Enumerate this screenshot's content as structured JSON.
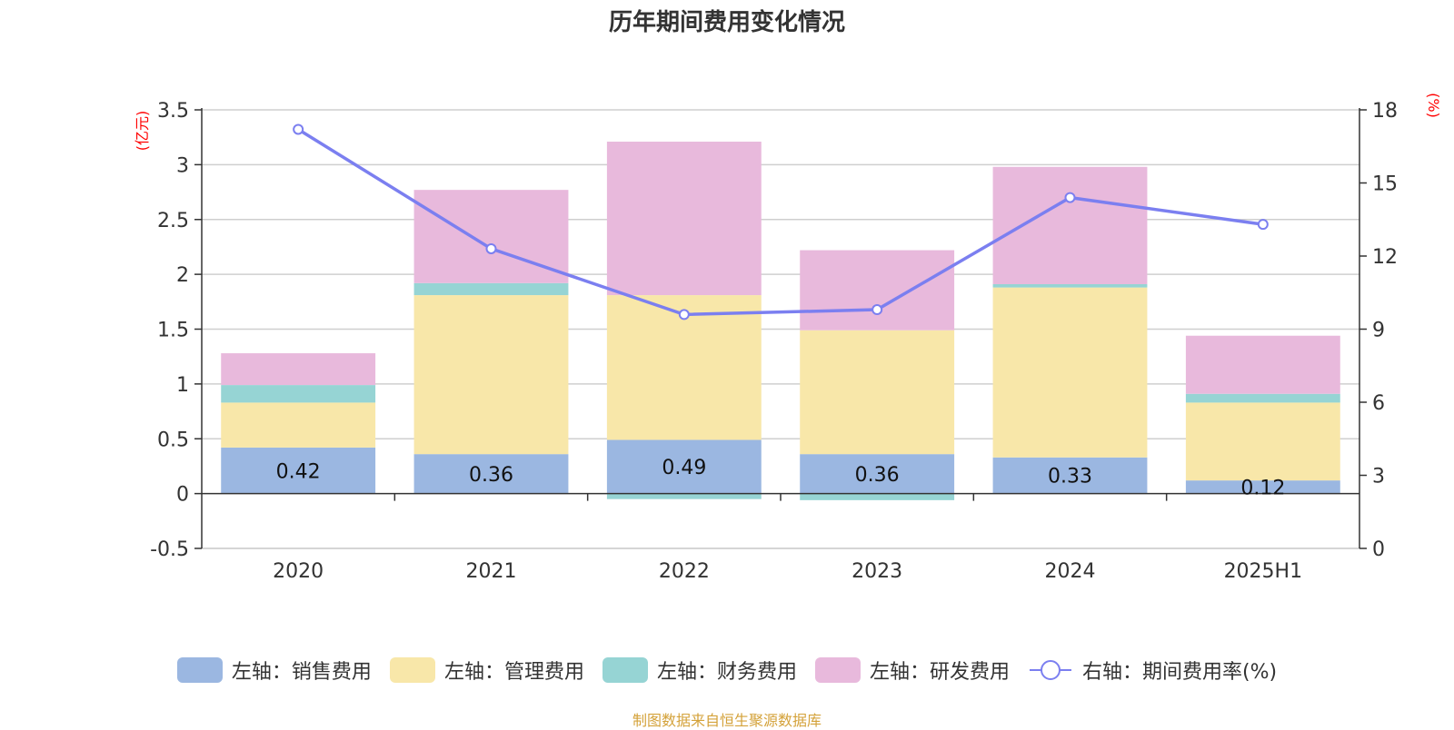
{
  "chart_data": {
    "type": "bar",
    "title": "历年期间费用变化情况",
    "categories": [
      "2020",
      "2021",
      "2022",
      "2023",
      "2024",
      "2025H1"
    ],
    "left_unit": "(亿元)",
    "right_unit": "(%)",
    "ylim": [
      -0.5,
      3.5
    ],
    "yticks": [
      "-0.5",
      "0",
      "0.5",
      "1",
      "1.5",
      "2",
      "2.5",
      "3",
      "3.5"
    ],
    "y2lim": [
      0,
      18
    ],
    "y2ticks": [
      "0",
      "3",
      "6",
      "9",
      "12",
      "15",
      "18"
    ],
    "grid": true,
    "legend_position": "bottom",
    "series": [
      {
        "name": "左轴：销售费用",
        "axis": "left",
        "kind": "bar",
        "color": "#9bb7e1",
        "values": [
          0.42,
          0.36,
          0.49,
          0.36,
          0.33,
          0.12
        ],
        "labels": [
          "0.42",
          "0.36",
          "0.49",
          "0.36",
          "0.33",
          "0.12"
        ]
      },
      {
        "name": "左轴：管理费用",
        "axis": "left",
        "kind": "bar",
        "color": "#f8e7a9",
        "values": [
          0.41,
          1.45,
          1.32,
          1.13,
          1.55,
          0.71
        ]
      },
      {
        "name": "左轴：财务费用",
        "axis": "left",
        "kind": "bar",
        "color": "#96d4d4",
        "values": [
          0.16,
          0.11,
          -0.05,
          -0.06,
          0.03,
          0.08
        ]
      },
      {
        "name": "左轴：研发费用",
        "axis": "left",
        "kind": "bar",
        "color": "#e8b9dc",
        "values": [
          0.29,
          0.85,
          1.4,
          0.73,
          1.07,
          0.53
        ]
      },
      {
        "name": "右轴：期间费用率(%)",
        "axis": "right",
        "kind": "line",
        "color": "#7b7ff0",
        "values": [
          17.2,
          12.3,
          9.6,
          9.8,
          14.4,
          13.3
        ]
      }
    ]
  },
  "source_note": "制图数据来自恒生聚源数据库"
}
